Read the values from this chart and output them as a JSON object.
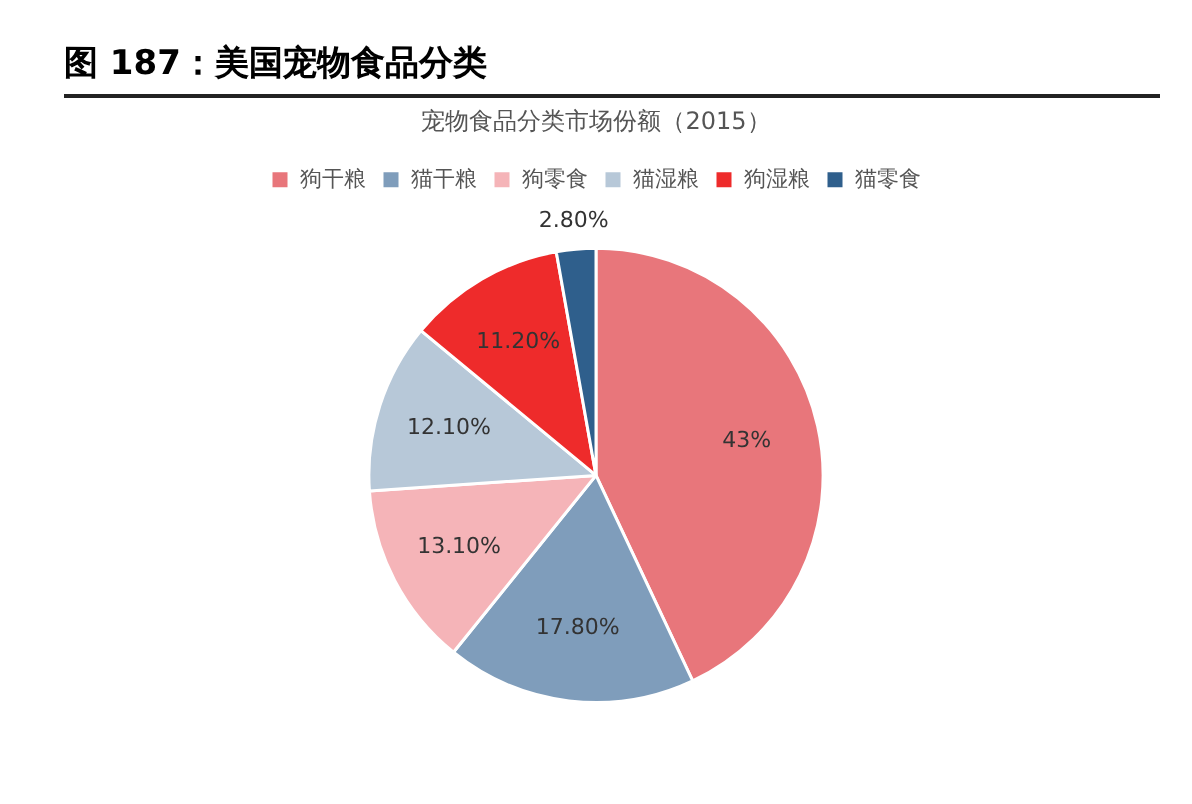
{
  "chart_data": {
    "type": "pie",
    "title": "图 187：美国宠物食品分类",
    "subtitle": "宠物食品分类市场份额（2015）",
    "categories": [
      "狗干粮",
      "猫干粮",
      "狗零食",
      "猫湿粮",
      "狗湿粮",
      "猫零食"
    ],
    "values": [
      43,
      17.8,
      13.1,
      12.1,
      11.2,
      2.8
    ],
    "colors": [
      "#e8767b",
      "#7f9dbb",
      "#f5b4b8",
      "#b7c8d8",
      "#ee2b2b",
      "#2f5f8c"
    ],
    "value_labels": [
      "43%",
      "17.80%",
      "13.10%",
      "12.10%",
      "11.20%",
      "2.80%"
    ],
    "legend": "top"
  }
}
